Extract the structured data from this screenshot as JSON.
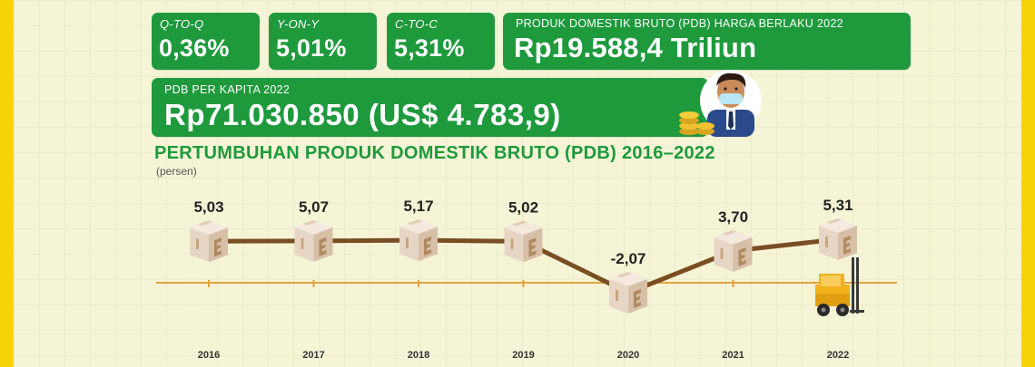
{
  "cards": {
    "qtoq": {
      "label": "Q-TO-Q",
      "value": "0,36%"
    },
    "yony": {
      "label": "Y-ON-Y",
      "value": "5,01%"
    },
    "ctoc": {
      "label": "C-TO-C",
      "value": "5,31%"
    },
    "pdb": {
      "label": "PRODUK DOMESTIK BRUTO (PDB) HARGA BERLAKU 2022",
      "value": "Rp19.588,4 Triliun"
    },
    "per_kapita": {
      "label": "PDB PER KAPITA 2022",
      "value": "Rp71.030.850 (US$ 4.783,9)"
    }
  },
  "colors": {
    "card_green": "#1e9a3c",
    "line_brown": "#7a4e22",
    "baseline": "#e3a33c",
    "frame_yellow": "#f7d40a",
    "background": "#f5f4d6"
  },
  "icons": {
    "avatar": "masked-man-with-coins-icon",
    "forklift": "forklift-icon",
    "box": "cardboard-box-icon"
  },
  "chart_data": {
    "type": "line",
    "title": "PERTUMBUHAN PRODUK DOMESTIK BRUTO (PDB) 2016–2022",
    "ylabel": "(persen)",
    "xlabel": "",
    "categories": [
      "2016",
      "2017",
      "2018",
      "2019",
      "2020",
      "2021",
      "2022"
    ],
    "values": [
      5.03,
      5.07,
      5.17,
      5.02,
      -2.07,
      3.7,
      5.31
    ],
    "value_labels": [
      "5,03",
      "5,07",
      "5,17",
      "5,02",
      "-2,07",
      "3,70",
      "5,31"
    ],
    "ylim": [
      -3,
      6
    ],
    "grid": false,
    "legend": "none"
  }
}
